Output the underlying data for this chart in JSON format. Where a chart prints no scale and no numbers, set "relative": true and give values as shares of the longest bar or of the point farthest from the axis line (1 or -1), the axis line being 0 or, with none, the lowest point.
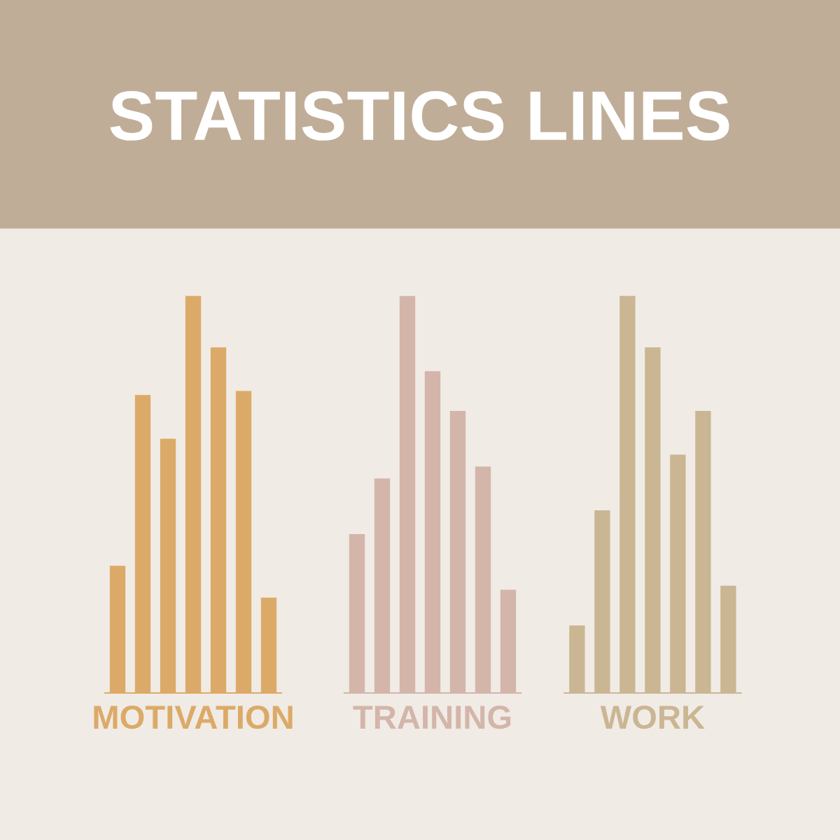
{
  "chart_data": [
    {
      "type": "bar",
      "title": "STATISTICS LINES",
      "xlabel": "MOTIVATION",
      "relative": true,
      "categories": [
        null,
        null,
        null,
        null,
        null,
        null,
        null
      ],
      "series": [
        {
          "color": "#dcaa68",
          "values": [
            0.32,
            0.75,
            0.64,
            1,
            0.87,
            0.76,
            0.24
          ]
        }
      ]
    },
    {
      "type": "bar",
      "xlabel": "TRAINING",
      "relative": true,
      "categories": [
        null,
        null,
        null,
        null,
        null,
        null,
        null
      ],
      "series": [
        {
          "color": "#d4b5aa",
          "values": [
            0.4,
            0.54,
            1,
            0.81,
            0.71,
            0.57,
            0.26
          ]
        }
      ]
    },
    {
      "type": "bar",
      "xlabel": "WORK",
      "relative": true,
      "categories": [
        null,
        null,
        null,
        null,
        null,
        null,
        null
      ],
      "series": [
        {
          "color": "#cbb693",
          "values": [
            0.17,
            0.46,
            1,
            0.87,
            0.6,
            0.71,
            0.27
          ]
        }
      ]
    }
  ]
}
